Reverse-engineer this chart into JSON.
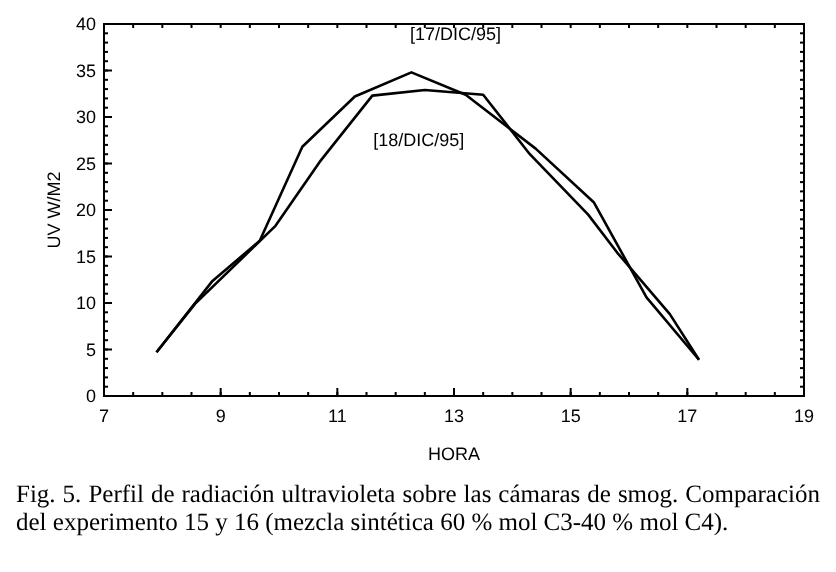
{
  "chart_data": {
    "type": "line",
    "xlabel": "HORA",
    "ylabel": "UV W/M2",
    "xlim": [
      7,
      19
    ],
    "xticks": [
      7,
      9,
      11,
      13,
      15,
      17,
      19
    ],
    "ylim": [
      0,
      40
    ],
    "yticks": [
      0,
      5,
      10,
      15,
      20,
      25,
      30,
      35,
      40
    ],
    "grid": false,
    "line_style": "solid",
    "marker": "none",
    "series": [
      {
        "name": "[17/DIC/95]",
        "color": "#000000",
        "x": [
          7.9,
          8.85,
          9.67,
          10.4,
          11.3,
          12.27,
          13.2,
          14.4,
          15.4,
          16.3,
          17.2
        ],
        "values": [
          4.7,
          12.3,
          16.7,
          26.8,
          32.2,
          34.8,
          32.4,
          26.6,
          20.8,
          10.6,
          3.9
        ]
      },
      {
        "name": "[18/DIC/95]",
        "color": "#000000",
        "x": [
          7.9,
          8.56,
          9.94,
          10.7,
          11.6,
          12.5,
          13.5,
          14.3,
          15.3,
          15.8,
          16.7,
          17.2
        ],
        "values": [
          4.7,
          9.9,
          18.3,
          25.2,
          32.3,
          32.9,
          32.4,
          26.0,
          19.5,
          15.4,
          8.8,
          3.9
        ]
      }
    ],
    "annotations": [
      "Fig. 5. Perfil de radiación ultravioleta sobre las cámaras de smog. Comparación del experimento 15 y 16 (mezcla sintética 60 % mol C3-40 % mol C4)."
    ]
  }
}
